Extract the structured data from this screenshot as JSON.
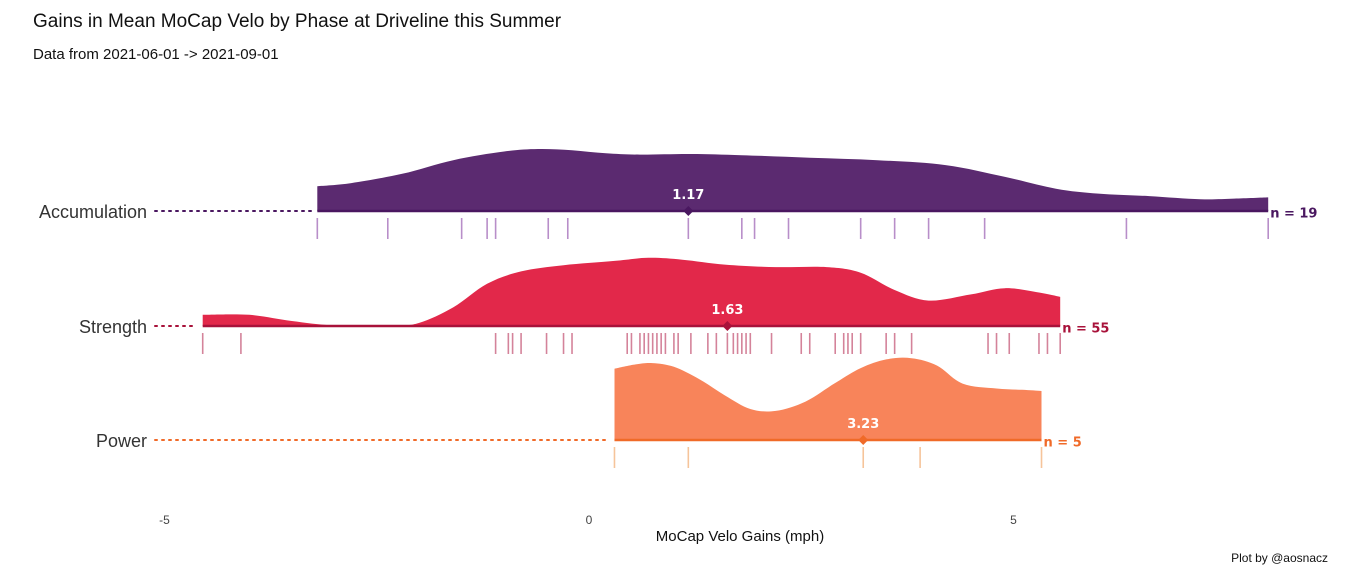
{
  "chart_data": {
    "type": "ridgeline",
    "title": "Gains in Mean MoCap Velo by Phase at Driveline this Summer",
    "subtitle": "Data from 2021-06-01 -> 2021-09-01",
    "xlabel": "MoCap Velo Gains (mph)",
    "caption": "Plot by @aosnacz",
    "xlim": [
      -5,
      8.2
    ],
    "x_ticks": [
      -5,
      0,
      5
    ],
    "x_tick_labels": [
      "-5",
      "0",
      "5"
    ],
    "density_unit": 1,
    "series": [
      {
        "name": "Accumulation",
        "n_label": "n = 19",
        "mean": 1.17,
        "mean_label": "1.17",
        "color": "#5b2a70",
        "line_color": "#4a1760",
        "rug_color": "#b88ec9",
        "range": [
          -3.2,
          8.0
        ],
        "density": [
          [
            -3.2,
            0.4
          ],
          [
            -2.8,
            0.45
          ],
          [
            -2.2,
            0.6
          ],
          [
            -1.6,
            0.82
          ],
          [
            -1.0,
            0.96
          ],
          [
            -0.6,
            1.0
          ],
          [
            -0.2,
            0.98
          ],
          [
            0.2,
            0.93
          ],
          [
            0.6,
            0.91
          ],
          [
            1.2,
            0.92
          ],
          [
            1.8,
            0.9
          ],
          [
            2.6,
            0.86
          ],
          [
            3.4,
            0.82
          ],
          [
            4.2,
            0.74
          ],
          [
            4.9,
            0.55
          ],
          [
            5.5,
            0.36
          ],
          [
            6.0,
            0.28
          ],
          [
            6.6,
            0.24
          ],
          [
            7.2,
            0.19
          ],
          [
            7.6,
            0.2
          ],
          [
            8.0,
            0.22
          ]
        ],
        "rug": [
          -3.2,
          -2.37,
          -1.5,
          -1.2,
          -1.1,
          -0.48,
          -0.25,
          1.17,
          1.8,
          1.95,
          2.35,
          3.2,
          3.6,
          4.0,
          4.66,
          6.33,
          8.0
        ]
      },
      {
        "name": "Strength",
        "n_label": "n = 55",
        "mean": 1.63,
        "mean_label": "1.63",
        "color": "#e2284a",
        "line_color": "#a8123a",
        "rug_color": "#d4839a",
        "range": [
          -4.55,
          5.55
        ],
        "density": [
          [
            -4.55,
            0.18
          ],
          [
            -4.0,
            0.18
          ],
          [
            -3.5,
            0.08
          ],
          [
            -3.0,
            0.01
          ],
          [
            -2.3,
            0.01
          ],
          [
            -2.0,
            0.05
          ],
          [
            -1.6,
            0.3
          ],
          [
            -1.2,
            0.68
          ],
          [
            -0.8,
            0.88
          ],
          [
            -0.3,
            0.98
          ],
          [
            0.3,
            1.05
          ],
          [
            0.7,
            1.1
          ],
          [
            1.1,
            1.07
          ],
          [
            1.6,
            0.99
          ],
          [
            2.2,
            0.95
          ],
          [
            2.8,
            0.95
          ],
          [
            3.2,
            0.86
          ],
          [
            3.6,
            0.58
          ],
          [
            4.0,
            0.41
          ],
          [
            4.5,
            0.51
          ],
          [
            4.9,
            0.61
          ],
          [
            5.3,
            0.54
          ],
          [
            5.55,
            0.47
          ]
        ],
        "rug": [
          -4.55,
          -4.1,
          -1.1,
          -0.95,
          -0.9,
          -0.8,
          -0.5,
          -0.3,
          -0.2,
          0.45,
          0.5,
          0.6,
          0.65,
          0.7,
          0.75,
          0.8,
          0.85,
          0.9,
          1.0,
          1.05,
          1.2,
          1.4,
          1.5,
          1.63,
          1.7,
          1.75,
          1.8,
          1.85,
          1.9,
          2.15,
          2.5,
          2.6,
          2.9,
          3.0,
          3.05,
          3.1,
          3.2,
          3.5,
          3.6,
          3.8,
          4.7,
          4.8,
          4.95,
          5.3,
          5.4,
          5.55
        ]
      },
      {
        "name": "Power",
        "n_label": "n = 5",
        "mean": 3.23,
        "mean_label": "3.23",
        "color": "#f8845a",
        "line_color": "#f06a28",
        "rug_color": "#f6c49a",
        "range": [
          0.3,
          5.33
        ],
        "density": [
          [
            0.3,
            1.15
          ],
          [
            0.55,
            1.22
          ],
          [
            0.75,
            1.24
          ],
          [
            1.0,
            1.18
          ],
          [
            1.3,
            0.98
          ],
          [
            1.6,
            0.72
          ],
          [
            1.9,
            0.5
          ],
          [
            2.2,
            0.47
          ],
          [
            2.55,
            0.62
          ],
          [
            2.9,
            0.92
          ],
          [
            3.2,
            1.16
          ],
          [
            3.5,
            1.3
          ],
          [
            3.8,
            1.32
          ],
          [
            4.1,
            1.2
          ],
          [
            4.4,
            0.91
          ],
          [
            4.8,
            0.83
          ],
          [
            5.1,
            0.81
          ],
          [
            5.33,
            0.79
          ]
        ],
        "rug": [
          0.3,
          1.17,
          3.23,
          3.9,
          5.33
        ]
      }
    ]
  }
}
